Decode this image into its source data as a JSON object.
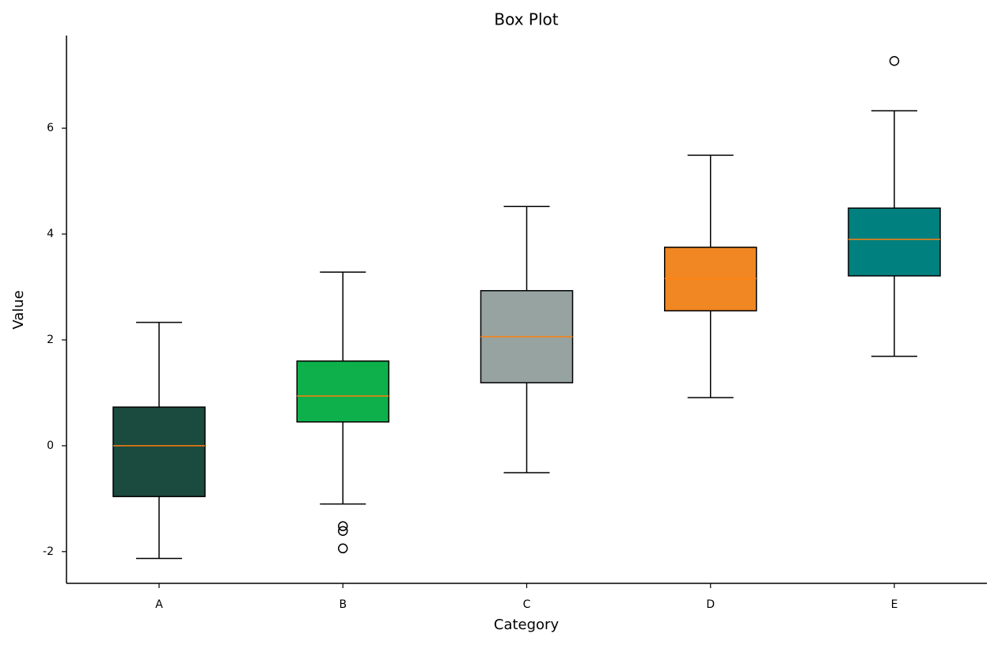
{
  "chart_data": {
    "type": "box",
    "title": "Box Plot",
    "x_label": "Category",
    "y_label": "Value",
    "categories": [
      "A",
      "B",
      "C",
      "D",
      "E"
    ],
    "boxes": [
      {
        "whisker_low": -2.13,
        "q1": -0.96,
        "median": 0,
        "q3": 0.73,
        "whisker_high": 2.33,
        "outliers": [],
        "color": "#1b4a3e"
      },
      {
        "whisker_low": -1.1,
        "q1": 0.45,
        "median": 0.94,
        "q3": 1.6,
        "whisker_high": 3.28,
        "outliers": [
          -1.52,
          -1.61,
          -1.94
        ],
        "color": "#0db04b"
      },
      {
        "whisker_low": -0.51,
        "q1": 1.19,
        "median": 2.06,
        "q3": 2.93,
        "whisker_high": 4.52,
        "outliers": [],
        "color": "#97a3a0"
      },
      {
        "whisker_low": 0.91,
        "q1": 2.55,
        "median": 3.16,
        "q3": 3.75,
        "whisker_high": 5.49,
        "outliers": [],
        "color": "#f08722"
      },
      {
        "whisker_low": 1.69,
        "q1": 3.21,
        "median": 3.9,
        "q3": 4.49,
        "whisker_high": 6.33,
        "outliers": [
          7.27
        ],
        "color": "#00817f"
      }
    ],
    "median_color": "#ff7f0e",
    "ylim": [
      -2.6,
      7.75
    ],
    "yticks": [
      -2,
      0,
      2,
      4,
      6
    ],
    "grid": false
  }
}
